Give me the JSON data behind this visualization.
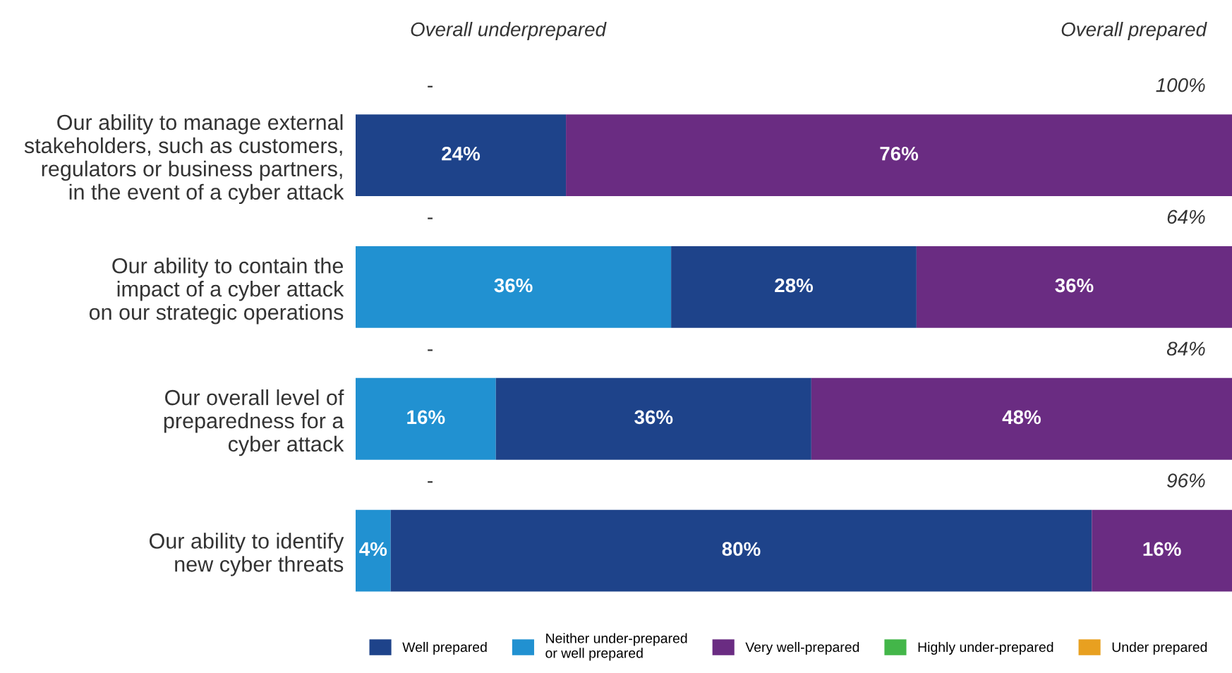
{
  "chart_data": {
    "type": "bar",
    "orientation": "horizontal",
    "stacked": true,
    "tick_labels": "y",
    "xlim": [
      0,
      100
    ],
    "grid": false,
    "legend": "bottom",
    "categories": [
      "Our ability to manage external\nstakeholders, such as customers,\nregulators or business partners,\nin the event of a cyber attack",
      "Our ability to contain the\nimpact of a cyber attack\non our strategic operations",
      "Our overall level of\npreparedness for a\ncyber attack",
      "Our ability to identify\nnew cyber threats"
    ],
    "series": [
      {
        "name": "Neither under-prepared\nor well prepared",
        "color": "#2191d1",
        "values": [
          0,
          36,
          16,
          4
        ],
        "value_labels": [
          null,
          "36%",
          "16%",
          "4%"
        ]
      },
      {
        "name": "Well prepared",
        "color": "#1e438a",
        "values": [
          24,
          28,
          36,
          80
        ],
        "value_labels": [
          "24%",
          "28%",
          "36%",
          "80%"
        ]
      },
      {
        "name": "Very well-prepared",
        "color": "#6a2c82",
        "values": [
          76,
          36,
          48,
          16
        ],
        "value_labels": [
          "76%",
          "36%",
          "48%",
          "16%"
        ]
      },
      {
        "name": "Highly under-prepared",
        "color": "#43b649",
        "values": [
          0,
          0,
          0,
          0
        ],
        "value_labels": [
          null,
          null,
          null,
          null
        ]
      },
      {
        "name": "Under prepared",
        "color": "#e8a020",
        "values": [
          0,
          0,
          0,
          0
        ],
        "value_labels": [
          null,
          null,
          null,
          null
        ]
      }
    ],
    "annotations": [
      "Overall underprepared",
      "Overall prepared",
      "-",
      "100%",
      "-",
      "64%",
      "-",
      "84%",
      "-",
      "96%"
    ]
  }
}
